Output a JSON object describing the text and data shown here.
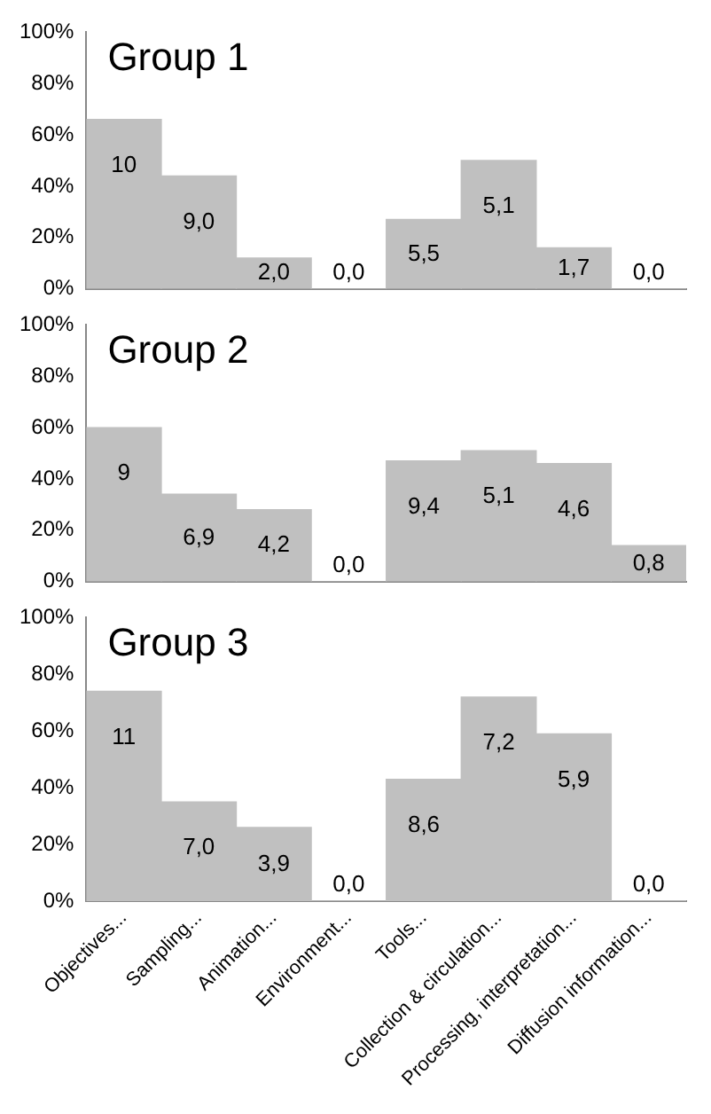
{
  "chart_data": [
    {
      "type": "bar",
      "title": "Group 1",
      "categories": [
        "Objectives...",
        "Sampling...",
        "Animation...",
        "Environment...",
        "Tools...",
        "Collection & circulation...",
        "Processing, interpretation...",
        "Diffusion information..."
      ],
      "values": [
        66,
        44,
        12,
        0,
        27,
        50,
        16,
        0
      ],
      "color": "#c0c0c0",
      "ylim": [
        0,
        100
      ],
      "yticks": [
        {
          "value": 0,
          "label": "0%"
        },
        {
          "value": 20,
          "label": "20%"
        },
        {
          "value": 40,
          "label": "40%"
        },
        {
          "value": 60,
          "label": "60%"
        },
        {
          "value": 80,
          "label": "80%"
        },
        {
          "value": 100,
          "label": "100%"
        }
      ],
      "grid": false,
      "legend": false,
      "tick_labels": "y",
      "annotations": [
        {
          "text": "10",
          "x": "Objectives...",
          "y": 66
        },
        {
          "text": "9,0",
          "x": "Sampling...",
          "y": 44
        },
        {
          "text": "2,0",
          "x": "Animation...",
          "y": 12
        },
        {
          "text": "0,0",
          "x": "Environment...",
          "y": 0
        },
        {
          "text": "5,5",
          "x": "Tools...",
          "y": 27
        },
        {
          "text": "5,1",
          "x": "Collection & circulation...",
          "y": 50
        },
        {
          "text": "1,7",
          "x": "Processing, interpretation...",
          "y": 16
        },
        {
          "text": "0,0",
          "x": "Diffusion information...",
          "y": 0
        }
      ]
    },
    {
      "type": "bar",
      "title": "Group 2",
      "categories": [
        "Objectives...",
        "Sampling...",
        "Animation...",
        "Environment...",
        "Tools...",
        "Collection & circulation...",
        "Processing, interpretation...",
        "Diffusion information..."
      ],
      "values": [
        60,
        34,
        28,
        0,
        47,
        51,
        46,
        14
      ],
      "color": "#c0c0c0",
      "ylim": [
        0,
        100
      ],
      "yticks": [
        {
          "value": 0,
          "label": "0%"
        },
        {
          "value": 20,
          "label": "20%"
        },
        {
          "value": 40,
          "label": "40%"
        },
        {
          "value": 60,
          "label": "60%"
        },
        {
          "value": 80,
          "label": "80%"
        },
        {
          "value": 100,
          "label": "100%"
        }
      ],
      "grid": false,
      "legend": false,
      "tick_labels": "y",
      "annotations": [
        {
          "text": "9",
          "x": "Objectives...",
          "y": 60
        },
        {
          "text": "6,9",
          "x": "Sampling...",
          "y": 34
        },
        {
          "text": "4,2",
          "x": "Animation...",
          "y": 28
        },
        {
          "text": "0,0",
          "x": "Environment...",
          "y": 0
        },
        {
          "text": "9,4",
          "x": "Tools...",
          "y": 47
        },
        {
          "text": "5,1",
          "x": "Collection & circulation...",
          "y": 51
        },
        {
          "text": "4,6",
          "x": "Processing, interpretation...",
          "y": 46
        },
        {
          "text": "0,8",
          "x": "Diffusion information...",
          "y": 14
        }
      ]
    },
    {
      "type": "bar",
      "title": "Group 3",
      "categories": [
        "Objectives...",
        "Sampling...",
        "Animation...",
        "Environment...",
        "Tools...",
        "Collection & circulation...",
        "Processing, interpretation...",
        "Diffusion information..."
      ],
      "values": [
        74,
        35,
        26,
        0,
        43,
        72,
        59,
        0
      ],
      "color": "#c0c0c0",
      "ylim": [
        0,
        100
      ],
      "yticks": [
        {
          "value": 0,
          "label": "0%"
        },
        {
          "value": 20,
          "label": "20%"
        },
        {
          "value": 40,
          "label": "40%"
        },
        {
          "value": 60,
          "label": "60%"
        },
        {
          "value": 80,
          "label": "80%"
        },
        {
          "value": 100,
          "label": "100%"
        }
      ],
      "grid": false,
      "legend": false,
      "annotations": [
        {
          "text": "11",
          "x": "Objectives...",
          "y": 74
        },
        {
          "text": "7,0",
          "x": "Sampling...",
          "y": 35
        },
        {
          "text": "3,9",
          "x": "Animation...",
          "y": 26
        },
        {
          "text": "0,0",
          "x": "Environment...",
          "y": 0
        },
        {
          "text": "8,6",
          "x": "Tools...",
          "y": 43
        },
        {
          "text": "7,2",
          "x": "Collection & circulation...",
          "y": 72
        },
        {
          "text": "5,9",
          "x": "Processing, interpretation...",
          "y": 59
        },
        {
          "text": "0,0",
          "x": "Diffusion information...",
          "y": 0
        }
      ]
    }
  ]
}
